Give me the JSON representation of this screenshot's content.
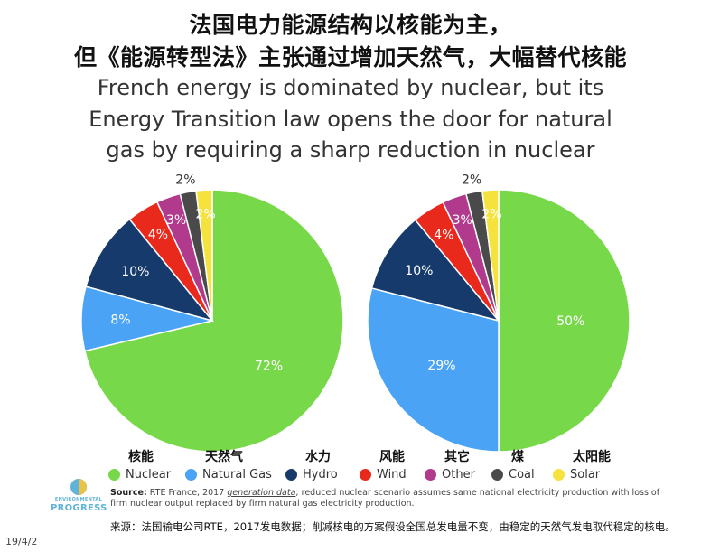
{
  "titles": {
    "cn_line1": "法国电力能源结构以核能为主，",
    "cn_line2": "但《能源转型法》主张通过增加天然气，大幅替代核能",
    "en_line1": "French energy is dominated by nuclear, but its",
    "en_line2": "Energy Transition law opens the door for natural",
    "en_line3": "gas by requiring a sharp reduction in nuclear"
  },
  "chart_data": [
    {
      "type": "pie",
      "slices": [
        {
          "label": "Nuclear",
          "value": 72,
          "color": "#77d94a",
          "label_text": "72%"
        },
        {
          "label": "Natural Gas",
          "value": 8,
          "color": "#4aa3f5",
          "label_text": "8%"
        },
        {
          "label": "Hydro",
          "value": 10,
          "color": "#163a6b",
          "label_text": "10%"
        },
        {
          "label": "Wind",
          "value": 4,
          "color": "#e8291c",
          "label_text": "4%"
        },
        {
          "label": "Other",
          "value": 3,
          "color": "#b23a8c",
          "label_text": "3%"
        },
        {
          "label": "Coal",
          "value": 2,
          "color": "#4a4a4a",
          "label_text": "2%"
        },
        {
          "label": "Solar",
          "value": 2,
          "color": "#f5e23c",
          "label_text": "2%"
        }
      ]
    },
    {
      "type": "pie",
      "slices": [
        {
          "label": "Nuclear",
          "value": 50,
          "color": "#77d94a",
          "label_text": "50%"
        },
        {
          "label": "Natural Gas",
          "value": 29,
          "color": "#4aa3f5",
          "label_text": "29%"
        },
        {
          "label": "Hydro",
          "value": 10,
          "color": "#163a6b",
          "label_text": "10%"
        },
        {
          "label": "Wind",
          "value": 4,
          "color": "#e8291c",
          "label_text": "4%"
        },
        {
          "label": "Other",
          "value": 3,
          "color": "#b23a8c",
          "label_text": "3%"
        },
        {
          "label": "Coal",
          "value": 2,
          "color": "#4a4a4a",
          "label_text": "2%"
        },
        {
          "label": "Solar",
          "value": 2,
          "color": "#f5e23c",
          "label_text": "2%"
        }
      ]
    }
  ],
  "legend": [
    {
      "cn": "核能",
      "en": "Nuclear",
      "color": "#77d94a"
    },
    {
      "cn": "天然气",
      "en": "Natural Gas",
      "color": "#4aa3f5"
    },
    {
      "cn": "水力",
      "en": "Hydro",
      "color": "#163a6b"
    },
    {
      "cn": "风能",
      "en": "Wind",
      "color": "#e8291c"
    },
    {
      "cn": "其它",
      "en": "Other",
      "color": "#b23a8c"
    },
    {
      "cn": "煤",
      "en": "Coal",
      "color": "#4a4a4a"
    },
    {
      "cn": "太阳能",
      "en": "Solar",
      "color": "#f5e23c"
    }
  ],
  "logo": {
    "small": "ENVIRONMENTAL",
    "big": "PROGRESS"
  },
  "source": {
    "label": "Source:",
    "org": "RTE France, 2017",
    "link": "generation data",
    "rest": "; reduced nuclear scenario assumes same national electricity production with loss of firm nuclear output replaced by firm natural gas electricity production."
  },
  "cn_note": "来源：法国输电公司RTE，2017发电数据；削减核电的方案假设全国总发电量不变，由稳定的天然气发电取代稳定的核电。",
  "date": "19/4/2"
}
